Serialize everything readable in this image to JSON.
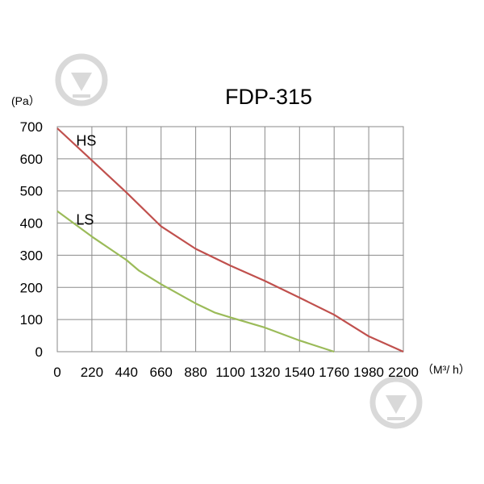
{
  "chart_data": {
    "type": "line",
    "title": "FDP-315",
    "ylabel": "(Pa）",
    "xlabel": "（M³/ h）",
    "xlim": [
      0,
      2200
    ],
    "ylim": [
      0,
      700
    ],
    "x_ticks": [
      "0",
      "220",
      "440",
      "660",
      "880",
      "1100",
      "1320",
      "1540",
      "1760",
      "1980",
      "2200"
    ],
    "y_ticks": [
      "0",
      "100",
      "200",
      "300",
      "400",
      "500",
      "600",
      "700"
    ],
    "grid": true,
    "series": [
      {
        "name": "HS",
        "color": "#c0504d",
        "points": [
          [
            0,
            695
          ],
          [
            220,
            595
          ],
          [
            440,
            495
          ],
          [
            660,
            390
          ],
          [
            880,
            320
          ],
          [
            1100,
            268
          ],
          [
            1320,
            220
          ],
          [
            1540,
            168
          ],
          [
            1760,
            115
          ],
          [
            1980,
            48
          ],
          [
            2200,
            0
          ]
        ]
      },
      {
        "name": "LS",
        "color": "#9bbb59",
        "points": [
          [
            0,
            437
          ],
          [
            220,
            358
          ],
          [
            440,
            285
          ],
          [
            520,
            252
          ],
          [
            660,
            210
          ],
          [
            880,
            150
          ],
          [
            1000,
            122
          ],
          [
            1100,
            107
          ],
          [
            1320,
            75
          ],
          [
            1540,
            35
          ],
          [
            1760,
            0
          ]
        ]
      }
    ]
  },
  "watermark": {
    "icon": "download-arrow-icon",
    "color": "#d9d9d9"
  }
}
